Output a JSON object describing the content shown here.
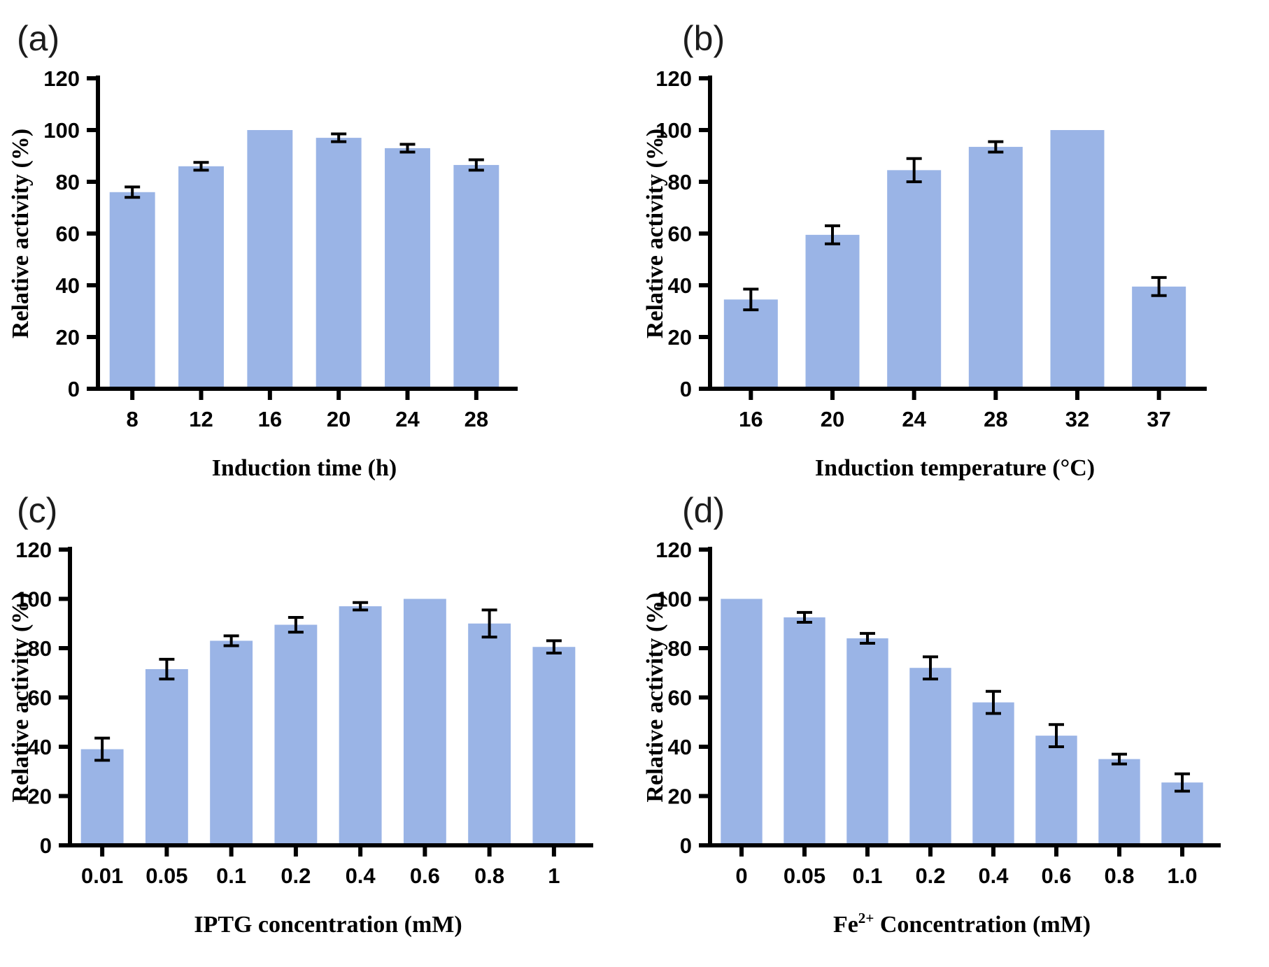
{
  "figure": {
    "bar_color": "#9ab4e6",
    "axis_color": "#000000",
    "error_bar_color": "#000000",
    "background_color": "#ffffff"
  },
  "panels": [
    {
      "label": "(a)"
    },
    {
      "label": "(b)"
    },
    {
      "label": "(c)"
    },
    {
      "label": "(d)"
    }
  ],
  "chart_data": [
    {
      "type": "bar",
      "panel": "(a)",
      "title": "",
      "xlabel": "Induction time (h)",
      "ylabel": "Relative activity (%)",
      "categories": [
        "8",
        "12",
        "16",
        "20",
        "24",
        "28"
      ],
      "values": [
        76,
        86,
        100,
        97,
        93,
        86.5
      ],
      "errors": [
        2,
        1.5,
        0,
        1.5,
        1.5,
        2
      ],
      "ylim": [
        0,
        120
      ],
      "yticks": [
        0,
        20,
        40,
        60,
        80,
        100,
        120
      ],
      "grid": false,
      "legend": false
    },
    {
      "type": "bar",
      "panel": "(b)",
      "title": "",
      "xlabel": "Induction temperature (°C)",
      "ylabel": "Relative activity (%)",
      "categories": [
        "16",
        "20",
        "24",
        "28",
        "32",
        "37"
      ],
      "values": [
        34.5,
        59.5,
        84.5,
        93.5,
        100,
        39.5
      ],
      "errors": [
        4,
        3.5,
        4.5,
        2,
        0,
        3.5
      ],
      "ylim": [
        0,
        120
      ],
      "yticks": [
        0,
        20,
        40,
        60,
        80,
        100,
        120
      ],
      "grid": false,
      "legend": false
    },
    {
      "type": "bar",
      "panel": "(c)",
      "title": "",
      "xlabel": "IPTG concentration (mM)",
      "ylabel": "Relative activity (%)",
      "categories": [
        "0.01",
        "0.05",
        "0.1",
        "0.2",
        "0.4",
        "0.6",
        "0.8",
        "1"
      ],
      "values": [
        39,
        71.5,
        83,
        89.5,
        97,
        100,
        90,
        80.5
      ],
      "errors": [
        4.5,
        4,
        2,
        3,
        1.5,
        0,
        5.5,
        2.5
      ],
      "ylim": [
        0,
        120
      ],
      "yticks": [
        0,
        20,
        40,
        60,
        80,
        100,
        120
      ],
      "grid": false,
      "legend": false
    },
    {
      "type": "bar",
      "panel": "(d)",
      "title": "",
      "xlabel": "Fe^{2+} Concentration (mM)",
      "ylabel": "Relative activity (%)",
      "categories": [
        "0",
        "0.05",
        "0.1",
        "0.2",
        "0.4",
        "0.6",
        "0.8",
        "1.0"
      ],
      "values": [
        100,
        92.5,
        84,
        72,
        58,
        44.5,
        35,
        25.5
      ],
      "errors": [
        0,
        2,
        2,
        4.5,
        4.5,
        4.5,
        2,
        3.5
      ],
      "ylim": [
        0,
        120
      ],
      "yticks": [
        0,
        20,
        40,
        60,
        80,
        100,
        120
      ],
      "grid": false,
      "legend": false
    }
  ]
}
